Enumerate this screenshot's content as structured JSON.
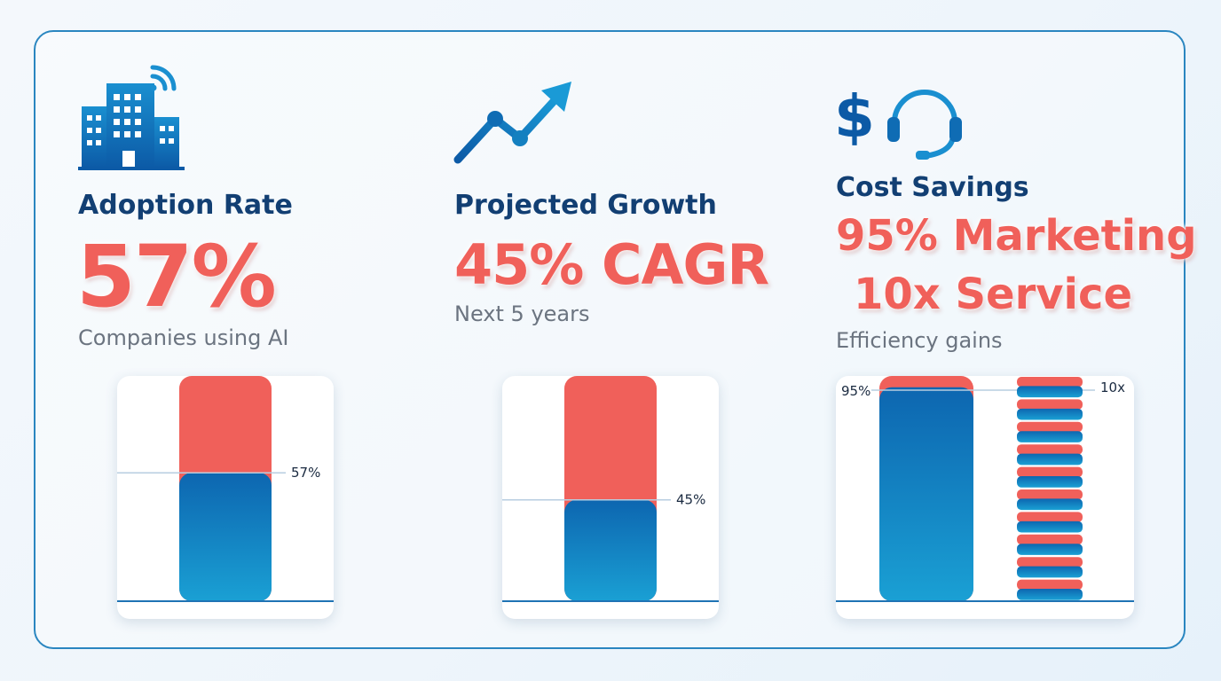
{
  "colors": {
    "accent_red": "#f0605a",
    "navy": "#123f73",
    "blue_top": "#0d66b0",
    "blue_bottom": "#1aa0d4"
  },
  "panels": [
    {
      "icon": "office-building-wifi-icon",
      "title": "Adoption Rate",
      "headline": "57%",
      "subtitle": "Companies using AI"
    },
    {
      "icon": "trend-up-arrow-icon",
      "title": "Projected Growth",
      "headline": "45% CAGR",
      "subtitle": "Next 5 years"
    },
    {
      "icon": "dollar-headset-icon",
      "title": "Cost Savings",
      "headline_1": "95% Marketing",
      "headline_2": "10x Service",
      "subtitle": "Efficiency gains"
    }
  ],
  "chart_data": [
    {
      "type": "bar",
      "values": [
        57
      ],
      "ylim": [
        0,
        100
      ],
      "data_labels": [
        "57%"
      ]
    },
    {
      "type": "bar",
      "values": [
        45
      ],
      "ylim": [
        0,
        100
      ],
      "data_labels": [
        "45%"
      ]
    },
    {
      "type": "bar",
      "values": [
        95,
        10
      ],
      "data_labels": [
        "95%",
        "10x"
      ],
      "segments_second_bar": 10
    }
  ]
}
